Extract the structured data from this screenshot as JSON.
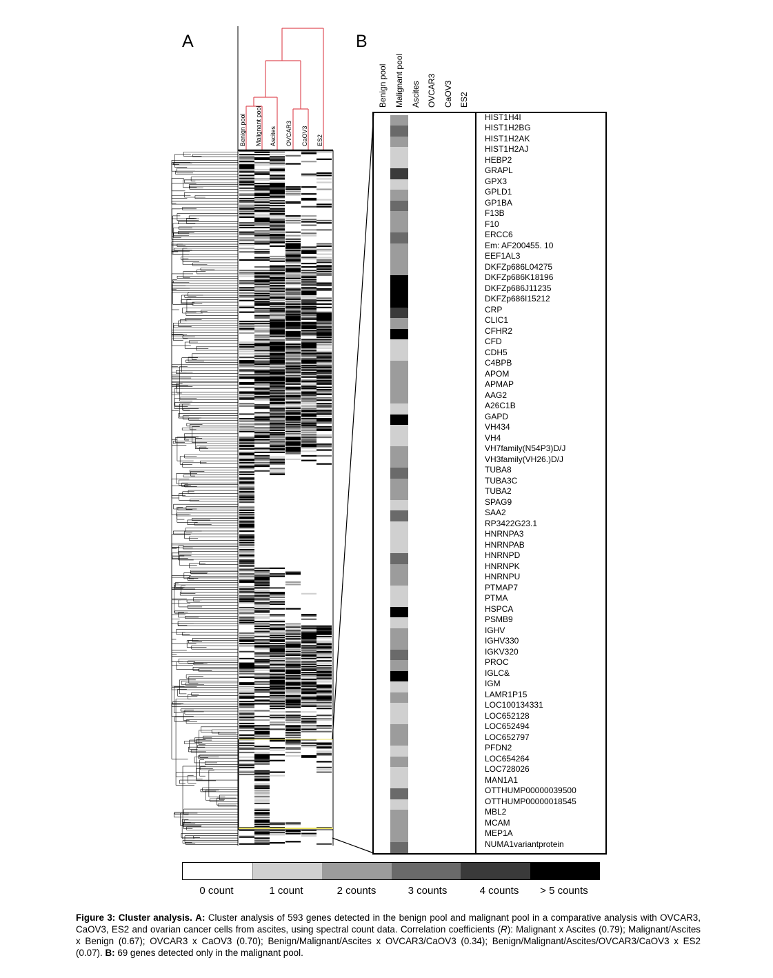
{
  "panel_a": {
    "letter": "A",
    "columns": [
      "Benign pool",
      "Malignant pool",
      "Ascites",
      "OVCAR3",
      "CaOV3",
      "ES2"
    ]
  },
  "panel_b": {
    "letter": "B",
    "columns": [
      "Benign pool",
      "Malignant pool",
      "Ascites",
      "OVCAR3",
      "CaOV3",
      "ES2"
    ],
    "genes": [
      "HIST1H4I",
      "HIST1H2BG",
      "HIST1H2AK",
      "HIST1H2AJ",
      "HEBP2",
      "GRAPL",
      "GPX3",
      "GPLD1",
      "GP1BA",
      "F13B",
      "F10",
      "ERCC6",
      "Em: AF200455. 10",
      "EEF1AL3",
      "DKFZp686L04275",
      "DKFZp686K18196",
      "DKFZp686J11235",
      "DKFZp686I15212",
      "CRP",
      "CLIC1",
      "CFHR2",
      "CFD",
      "CDH5",
      "C4BPB",
      "APOM",
      "APMAP",
      "AAG2",
      "A26C1B",
      "GAPD",
      "VH434",
      "VH4",
      "VH7family(N54P3)D/J",
      "VH3family(VH26.)D/J",
      "TUBA8",
      "TUBA3C",
      "TUBA2",
      "SPAG9",
      "SAA2",
      "RP3422G23.1",
      "HNRNPA3",
      "HNRNPAB",
      "HNRNPD",
      "HNRNPK",
      "HNRNPU",
      "PTMAP7",
      "PTMA",
      "HSPCA",
      "PSMB9",
      "IGHV",
      "IGHV330",
      "IGKV320",
      "PROC",
      "IGLC&",
      "IGM",
      "LAMR1P15",
      "LOC100134331",
      "LOC652128",
      "LOC652494",
      "LOC652797",
      "PFDN2",
      "LOC654264",
      "LOC728026",
      "MAN1A1",
      "OTTHUMP00000039500",
      "OTTHUMP00000018545",
      "MBL2",
      "MCAM",
      "MEP1A",
      "NUMA1variantprotein"
    ],
    "malignant_counts": [
      2,
      3,
      2,
      1,
      1,
      4,
      1,
      2,
      3,
      2,
      2,
      3,
      2,
      2,
      2,
      5,
      5,
      5,
      4,
      2,
      5,
      1,
      1,
      2,
      2,
      2,
      2,
      1,
      5,
      1,
      1,
      2,
      2,
      3,
      2,
      2,
      1,
      3,
      1,
      1,
      1,
      3,
      2,
      2,
      1,
      1,
      5,
      1,
      2,
      2,
      3,
      2,
      5,
      1,
      2,
      1,
      1,
      2,
      2,
      1,
      2,
      1,
      1,
      3,
      1,
      2,
      2,
      2,
      3
    ]
  },
  "legend": {
    "items": [
      {
        "label": "0 count",
        "color": "#ffffff"
      },
      {
        "label": "1 count",
        "color": "#d0d0d0"
      },
      {
        "label": "2 counts",
        "color": "#9c9c9c"
      },
      {
        "label": "3 counts",
        "color": "#6a6a6a"
      },
      {
        "label": "4 counts",
        "color": "#3a3a3a"
      },
      {
        "label": "> 5 counts",
        "color": "#000000"
      }
    ]
  },
  "colors": {
    "dendrogram_top": "#e0505a",
    "highlight_box": "#e8e060"
  },
  "caption": {
    "fig_label": "Figure 3: Cluster analysis.",
    "a_label": "A:",
    "a_text": "Cluster analysis of 593 genes detected in the benign pool and malignant pool in a comparative analysis with OVCAR3, CaOV3, ES2 and ovarian cancer cells from ascites, using spectral count data. Correlation coefficients (",
    "r": "R",
    "a_text2": "): Malignant x Ascites (0.79); Malignant/Ascites x Benign (0.67); OVCAR3 x CaOV3 (0.70); Benign/Malignant/Ascites x OVCAR3/CaOV3 (0.34); Benign/Malignant/Ascites/OVCAR3/CaOV3 x ES2 (0.07).",
    "b_label": "B:",
    "b_text": "69 genes detected only in the malignant pool."
  }
}
